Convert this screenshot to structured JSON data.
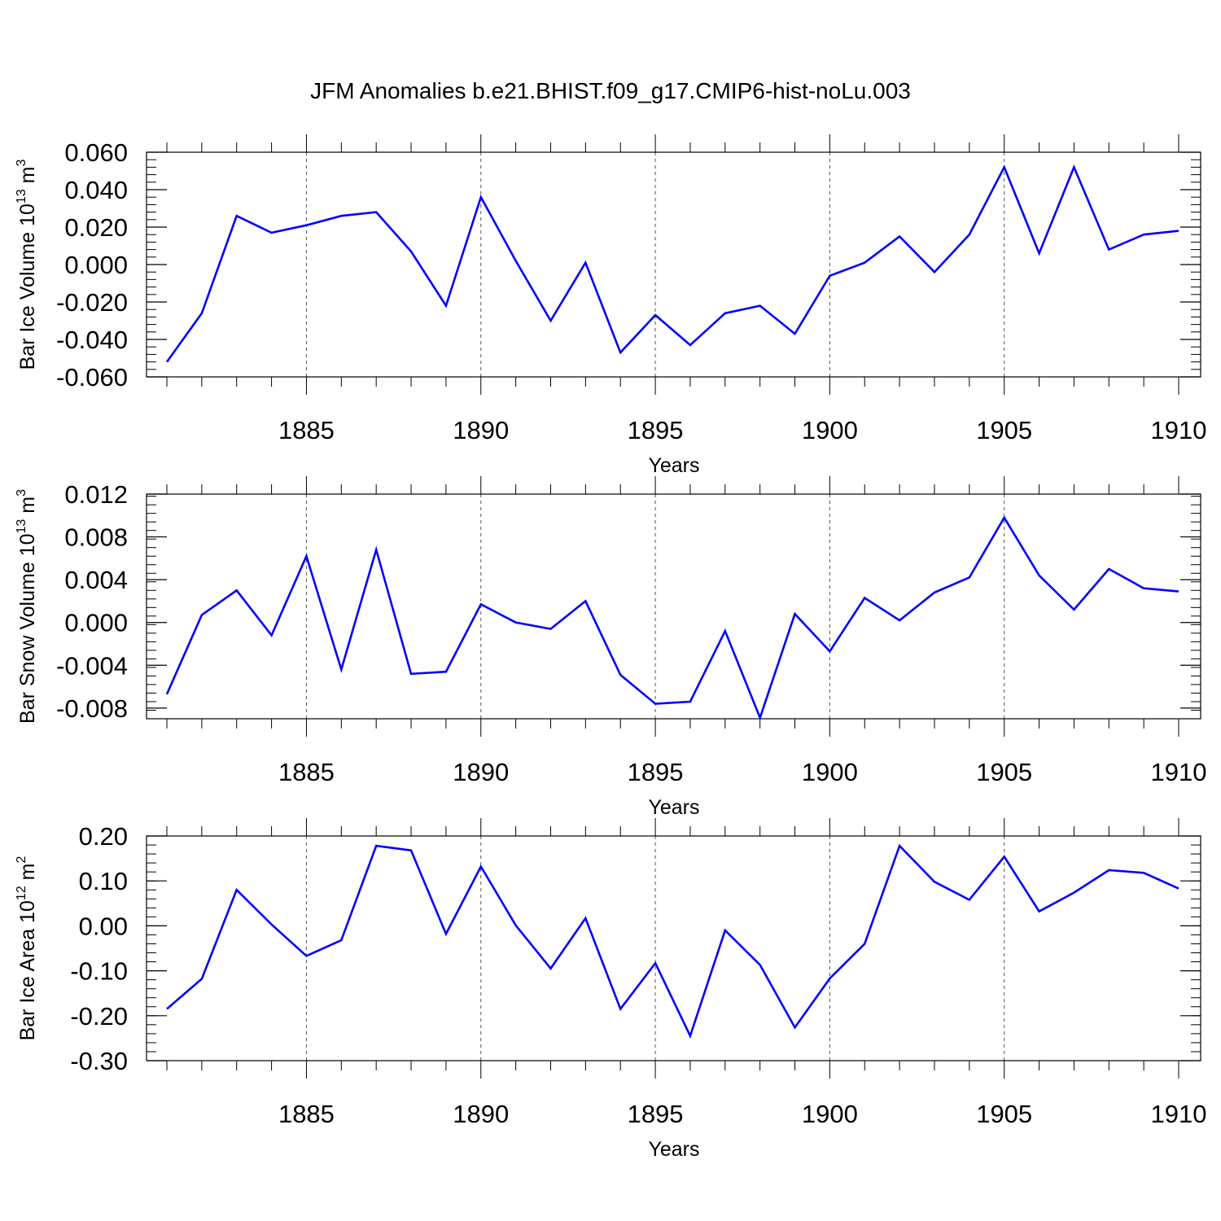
{
  "figure_title": "JFM Anomalies b.e21.BHIST.f09_g17.CMIP6-hist-noLu.003",
  "colors": {
    "line": "#0000ff",
    "axis": "#000000",
    "gridline": "#555555"
  },
  "chart_data": [
    {
      "type": "line",
      "title": "",
      "xlabel": "Years",
      "ylabel_text": "Bar Ice Volume 10",
      "ylabel_exp": "13",
      "ylabel_unit": "m",
      "ylabel_unit_exp": "3",
      "xlim": [
        1881,
        1910
      ],
      "ylim": [
        -0.06,
        0.06
      ],
      "xticks": [
        1885,
        1890,
        1895,
        1900,
        1905,
        1910
      ],
      "yticks": [
        -0.06,
        -0.04,
        -0.02,
        0.0,
        0.02,
        0.04,
        0.06
      ],
      "ytick_labels": [
        "-0.060",
        "-0.040",
        "-0.020",
        "0.000",
        "0.020",
        "0.040",
        "0.060"
      ],
      "grid_x": [
        1885,
        1890,
        1895,
        1900,
        1905
      ],
      "series": [
        {
          "name": "Bar Ice Volume",
          "x": [
            1881,
            1882,
            1883,
            1884,
            1885,
            1886,
            1887,
            1888,
            1889,
            1890,
            1891,
            1892,
            1893,
            1894,
            1895,
            1896,
            1897,
            1898,
            1899,
            1900,
            1901,
            1902,
            1903,
            1904,
            1905,
            1906,
            1907,
            1908,
            1909,
            1910
          ],
          "values": [
            -0.052,
            -0.026,
            0.026,
            0.017,
            0.021,
            0.026,
            0.028,
            0.007,
            -0.022,
            0.036,
            0.002,
            -0.03,
            0.001,
            -0.047,
            -0.027,
            -0.043,
            -0.026,
            -0.022,
            -0.037,
            -0.006,
            0.001,
            0.015,
            -0.004,
            0.016,
            0.052,
            0.006,
            0.052,
            0.008,
            0.016,
            0.018
          ]
        }
      ]
    },
    {
      "type": "line",
      "title": "",
      "xlabel": "Years",
      "ylabel_text": "Bar Snow Volume 10",
      "ylabel_exp": "13",
      "ylabel_unit": "m",
      "ylabel_unit_exp": "3",
      "xlim": [
        1881,
        1910
      ],
      "ylim": [
        -0.009,
        0.012
      ],
      "xticks": [
        1885,
        1890,
        1895,
        1900,
        1905,
        1910
      ],
      "yticks": [
        -0.008,
        -0.004,
        0.0,
        0.004,
        0.008,
        0.012
      ],
      "ytick_labels": [
        "-0.008",
        "-0.004",
        "0.000",
        "0.004",
        "0.008",
        "0.012"
      ],
      "grid_x": [
        1885,
        1890,
        1895,
        1900,
        1905
      ],
      "series": [
        {
          "name": "Bar Snow Volume",
          "x": [
            1881,
            1882,
            1883,
            1884,
            1885,
            1886,
            1887,
            1888,
            1889,
            1890,
            1891,
            1892,
            1893,
            1894,
            1895,
            1896,
            1897,
            1898,
            1899,
            1900,
            1901,
            1902,
            1903,
            1904,
            1905,
            1906,
            1907,
            1908,
            1909,
            1910
          ],
          "values": [
            -0.0067,
            0.0007,
            0.003,
            -0.0012,
            0.0062,
            -0.0044,
            0.0068,
            -0.0048,
            -0.0046,
            0.0017,
            0.0,
            -0.0006,
            0.002,
            -0.0049,
            -0.0076,
            -0.0074,
            -0.0008,
            -0.0089,
            0.0008,
            -0.0027,
            0.0023,
            0.0002,
            0.0028,
            0.0042,
            0.0098,
            0.0044,
            0.0012,
            0.005,
            0.0032,
            0.0029
          ]
        }
      ]
    },
    {
      "type": "line",
      "title": "",
      "xlabel": "Years",
      "ylabel_text": "Bar Ice Area 10",
      "ylabel_exp": "12",
      "ylabel_unit": "m",
      "ylabel_unit_exp": "2",
      "xlim": [
        1881,
        1910
      ],
      "ylim": [
        -0.3,
        0.2
      ],
      "xticks": [
        1885,
        1890,
        1895,
        1900,
        1905,
        1910
      ],
      "yticks": [
        -0.3,
        -0.2,
        -0.1,
        0.0,
        0.1,
        0.2
      ],
      "ytick_labels": [
        "-0.30",
        "-0.20",
        "-0.10",
        "0.00",
        "0.10",
        "0.20"
      ],
      "grid_x": [
        1885,
        1890,
        1895,
        1900,
        1905
      ],
      "series": [
        {
          "name": "Bar Ice Area",
          "x": [
            1881,
            1882,
            1883,
            1884,
            1885,
            1886,
            1887,
            1888,
            1889,
            1890,
            1891,
            1892,
            1893,
            1894,
            1895,
            1896,
            1897,
            1898,
            1899,
            1900,
            1901,
            1902,
            1903,
            1904,
            1905,
            1906,
            1907,
            1908,
            1909,
            1910
          ],
          "values": [
            -0.185,
            -0.118,
            0.08,
            0.003,
            -0.067,
            -0.032,
            0.178,
            0.168,
            -0.018,
            0.132,
            0.001,
            -0.095,
            0.017,
            -0.185,
            -0.083,
            -0.245,
            -0.01,
            -0.087,
            -0.226,
            -0.117,
            -0.04,
            0.178,
            0.098,
            0.058,
            0.154,
            0.032,
            0.074,
            0.124,
            0.118,
            0.083
          ]
        }
      ]
    }
  ]
}
